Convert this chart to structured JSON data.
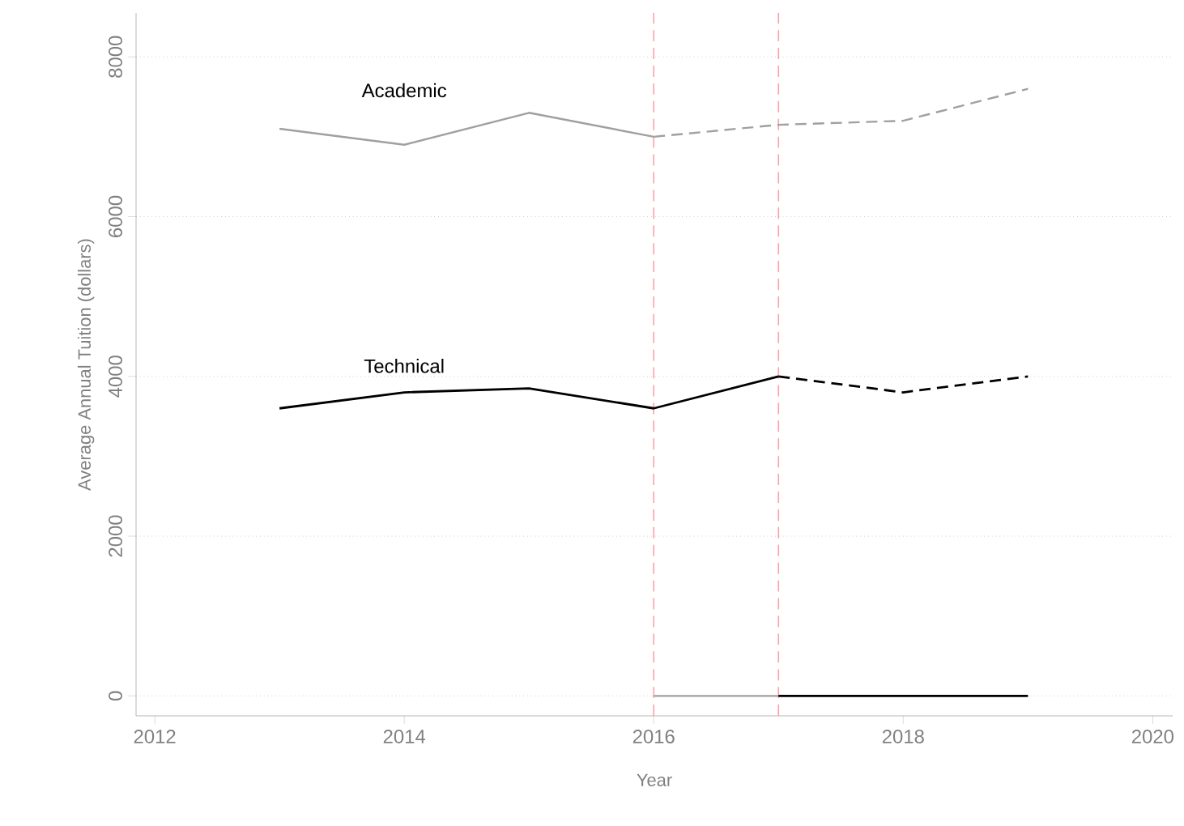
{
  "chart_data": {
    "type": "line",
    "xlabel": "Year",
    "ylabel": "Average Annual Tuition (dollars)",
    "xlim": [
      2011.85,
      2020.16
    ],
    "ylim": [
      -250,
      8550
    ],
    "xticks": [
      2012,
      2014,
      2016,
      2018,
      2020
    ],
    "yticks": [
      0,
      2000,
      4000,
      6000,
      8000
    ],
    "grid": "y",
    "series": [
      {
        "name": "Academic",
        "color": "#a0a0a0",
        "line_style": "solid",
        "x": [
          2013,
          2014,
          2015,
          2016
        ],
        "values": [
          7100,
          6900,
          7300,
          7000
        ]
      },
      {
        "color": "#a0a0a0",
        "line_style": "dashed",
        "x": [
          2016,
          2017,
          2018,
          2019
        ],
        "values": [
          7000,
          7150,
          7200,
          7600
        ]
      },
      {
        "name": "Technical",
        "color": "#000000",
        "line_style": "solid",
        "x": [
          2013,
          2014,
          2015,
          2016,
          2017
        ],
        "values": [
          3600,
          3800,
          3850,
          3600,
          4000
        ]
      },
      {
        "color": "#000000",
        "line_style": "dashed",
        "x": [
          2017,
          2018,
          2019
        ],
        "values": [
          4000,
          3800,
          4000
        ]
      },
      {
        "color": "#a0a0a0",
        "line_style": "solid",
        "x": [
          2016,
          2017
        ],
        "values": [
          0,
          0
        ]
      },
      {
        "color": "#000000",
        "line_style": "solid",
        "x": [
          2017,
          2018,
          2019
        ],
        "values": [
          0,
          0,
          0
        ]
      }
    ],
    "ref_lines": [
      {
        "axis": "x",
        "value": 2016,
        "color": "#ff9fa8",
        "line_style": "dashed"
      },
      {
        "axis": "x",
        "value": 2017,
        "color": "#ff9fa8",
        "line_style": "dashed"
      }
    ]
  }
}
